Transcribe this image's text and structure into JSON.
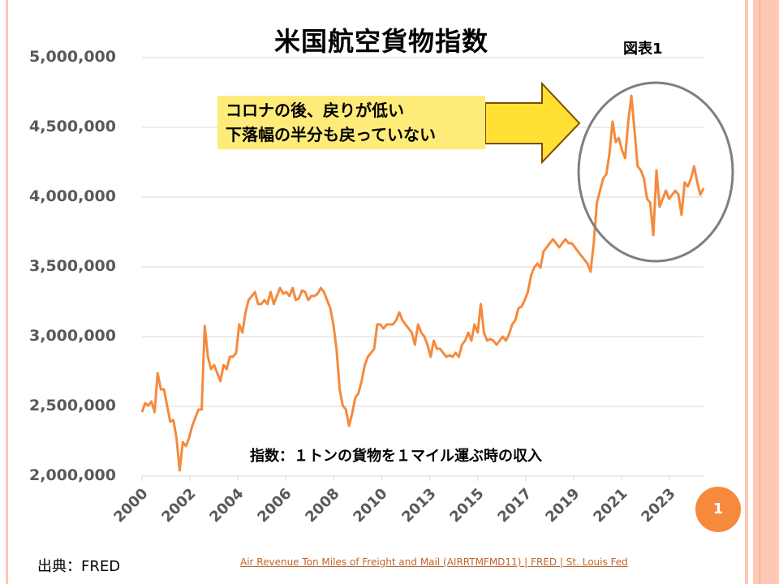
{
  "title": "米国航空貨物指数",
  "figure_label": "図表1",
  "callout": {
    "line1": "コロナの後、戻りが低い",
    "line2": "下落幅の半分も戻っていない"
  },
  "note": "指数：１トンの貨物を１マイル運ぶ時の収入",
  "page_number": "1",
  "source_label": "出典：FRED",
  "source_link": "Air Revenue Ton Miles of Freight and Mail (AIRRTMFMD11) | FRED | St. Louis Fed",
  "colors": {
    "line": "#f58a3c",
    "callout": "#ffeb7a",
    "arrow": "#ffe033",
    "ellipse": "#7f7f7f",
    "deco": "#fdc9b5"
  },
  "chart_data": {
    "type": "line",
    "title": "米国航空貨物指数",
    "xlabel": "",
    "ylabel": "",
    "ylim": [
      2000000,
      5000000
    ],
    "yticks": [
      "5,000,000",
      "4,500,000",
      "4,000,000",
      "3,500,000",
      "3,000,000",
      "2,500,000",
      "2,000,000"
    ],
    "ytick_values": [
      5000000,
      4500000,
      4000000,
      3500000,
      3000000,
      2500000,
      2000000
    ],
    "xticks": [
      "2000",
      "2002",
      "2004",
      "2006",
      "2008",
      "2010",
      "2013",
      "2015",
      "2017",
      "2019",
      "2021",
      "2023"
    ],
    "grid": true,
    "series": [
      {
        "name": "AIRRTMFMD11",
        "values": [
          2459000,
          2523000,
          2506000,
          2535000,
          2459000,
          2738000,
          2622000,
          2622000,
          2506000,
          2390000,
          2401000,
          2273000,
          2041000,
          2244000,
          2215000,
          2273000,
          2360000,
          2419000,
          2477000,
          2477000,
          3076000,
          2855000,
          2767000,
          2796000,
          2738000,
          2680000,
          2796000,
          2767000,
          2855000,
          2855000,
          2884000,
          3087000,
          3029000,
          3174000,
          3262000,
          3291000,
          3320000,
          3233000,
          3233000,
          3262000,
          3233000,
          3320000,
          3233000,
          3291000,
          3349000,
          3308000,
          3320000,
          3291000,
          3349000,
          3262000,
          3273000,
          3331000,
          3320000,
          3262000,
          3291000,
          3291000,
          3308000,
          3349000,
          3320000,
          3262000,
          3203000,
          3087000,
          2913000,
          2622000,
          2506000,
          2477000,
          2360000,
          2448000,
          2564000,
          2593000,
          2680000,
          2796000,
          2855000,
          2884000,
          2913000,
          3087000,
          3087000,
          3058000,
          3087000,
          3087000,
          3087000,
          3116000,
          3174000,
          3116000,
          3087000,
          3058000,
          3029000,
          2942000,
          3087000,
          3029000,
          3000000,
          2942000,
          2855000,
          2971000,
          2913000,
          2913000,
          2884000,
          2855000,
          2866000,
          2855000,
          2884000,
          2855000,
          2942000,
          2971000,
          3029000,
          2971000,
          3087000,
          3029000,
          3233000,
          3029000,
          2971000,
          2983000,
          2971000,
          2942000,
          2971000,
          3000000,
          2971000,
          3017000,
          3087000,
          3116000,
          3203000,
          3215000,
          3262000,
          3320000,
          3436000,
          3494000,
          3523000,
          3494000,
          3610000,
          3640000,
          3669000,
          3698000,
          3669000,
          3640000,
          3669000,
          3698000,
          3669000,
          3669000,
          3640000,
          3610000,
          3581000,
          3552000,
          3523000,
          3465000,
          3669000,
          3959000,
          4046000,
          4134000,
          4163000,
          4308000,
          4541000,
          4395000,
          4424000,
          4337000,
          4279000,
          4541000,
          4727000,
          4483000,
          4221000,
          4192000,
          4134000,
          3988000,
          3959000,
          3727000,
          4192000,
          3930000,
          3988000,
          4046000,
          3988000,
          4017000,
          4046000,
          4017000,
          3872000,
          4105000,
          4076000,
          4134000,
          4221000,
          4105000,
          4017000,
          4064000
        ]
      }
    ],
    "annotations": [
      "コロナの後、戻りが低い",
      "下落幅の半分も戻っていない",
      "指数：１トンの貨物を１マイル運ぶ時の収入"
    ]
  }
}
